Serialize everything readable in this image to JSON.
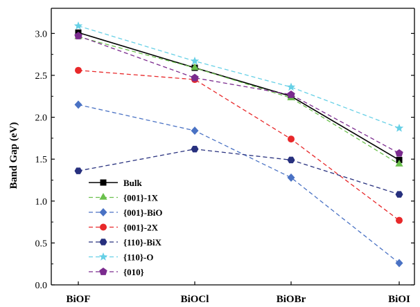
{
  "chart_data": {
    "type": "line",
    "categories": [
      "BiOF",
      "BiOCl",
      "BiOBr",
      "BiOI"
    ],
    "ylabel": "Band Gap (eV)",
    "ylim": [
      0,
      3.3
    ],
    "yticks": [
      "0.0",
      "0.5",
      "1.0",
      "1.5",
      "2.0",
      "2.5",
      "3.0"
    ],
    "grid": false,
    "legend_position": "bottom-left",
    "series": [
      {
        "name": "Bulk",
        "values": [
          3.01,
          2.59,
          2.25,
          1.49
        ],
        "color": "#000000",
        "marker": "square",
        "dashed": false
      },
      {
        "name": "{001}-1X",
        "values": [
          2.96,
          2.59,
          2.23,
          1.44
        ],
        "color": "#6ac04c",
        "marker": "triangle",
        "dashed": true
      },
      {
        "name": "{001}-BiO",
        "values": [
          2.15,
          1.84,
          1.28,
          0.26
        ],
        "color": "#4a72c4",
        "marker": "diamond",
        "dashed": true
      },
      {
        "name": "{001}-2X",
        "values": [
          2.56,
          2.45,
          1.74,
          0.77
        ],
        "color": "#e8282a",
        "marker": "circle",
        "dashed": true
      },
      {
        "name": "{110}-BiX",
        "values": [
          1.36,
          1.62,
          1.49,
          1.08
        ],
        "color": "#27307e",
        "marker": "hexagon",
        "dashed": true
      },
      {
        "name": "{110}-O",
        "values": [
          3.09,
          2.67,
          2.36,
          1.87
        ],
        "color": "#66d0e6",
        "marker": "star",
        "dashed": true
      },
      {
        "name": "{010}",
        "values": [
          2.97,
          2.47,
          2.27,
          1.57
        ],
        "color": "#7b2b8e",
        "marker": "pentagon",
        "dashed": true
      }
    ]
  }
}
